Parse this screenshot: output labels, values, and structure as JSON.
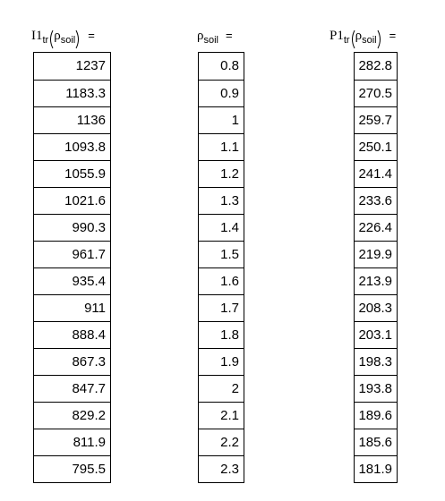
{
  "columns": [
    {
      "header": {
        "name": "I1",
        "subscript": "tr",
        "argument": "ρ",
        "argument_subscript": "soil",
        "operator": "="
      },
      "values": [
        1237,
        1183.3,
        1136,
        1093.8,
        1055.9,
        1021.6,
        990.3,
        961.7,
        935.4,
        911,
        888.4,
        867.3,
        847.7,
        829.2,
        811.9,
        795.5
      ]
    },
    {
      "header": {
        "argument": "ρ",
        "argument_subscript": "soil",
        "operator": "="
      },
      "values": [
        0.8,
        0.9,
        1,
        1.1,
        1.2,
        1.3,
        1.4,
        1.5,
        1.6,
        1.7,
        1.8,
        1.9,
        2,
        2.1,
        2.2,
        2.3
      ]
    },
    {
      "header": {
        "name": "P1",
        "subscript": "tr",
        "argument": "ρ",
        "argument_subscript": "soil",
        "operator": "="
      },
      "values": [
        282.8,
        270.5,
        259.7,
        250.1,
        241.4,
        233.6,
        226.4,
        219.9,
        213.9,
        208.3,
        203.1,
        198.3,
        193.8,
        189.6,
        185.6,
        181.9
      ]
    }
  ]
}
